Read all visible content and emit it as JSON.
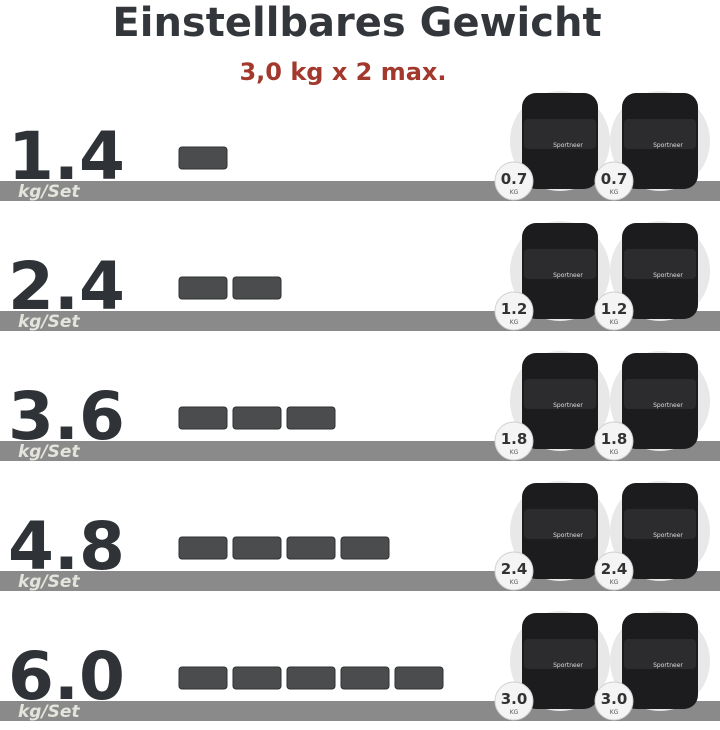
{
  "header": {
    "title": "Einstellbares Gewicht",
    "subtitle": "3,0 kg x 2 max."
  },
  "brand": "Sportneer",
  "rows": [
    {
      "weight": "1.4",
      "unit": "kg/Set",
      "badges": [
        {
          "value": "0.7",
          "unit": "KG"
        },
        {
          "value": "0.7",
          "unit": "KG"
        }
      ]
    },
    {
      "weight": "2.4",
      "unit": "kg/Set",
      "badges": [
        {
          "value": "1.2",
          "unit": "KG"
        },
        {
          "value": "1.2",
          "unit": "KG"
        }
      ]
    },
    {
      "weight": "3.6",
      "unit": "kg/Set",
      "badges": [
        {
          "value": "1.8",
          "unit": "KG"
        },
        {
          "value": "1.8",
          "unit": "KG"
        }
      ]
    },
    {
      "weight": "4.8",
      "unit": "kg/Set",
      "badges": [
        {
          "value": "2.4",
          "unit": "KG"
        },
        {
          "value": "2.4",
          "unit": "KG"
        }
      ]
    },
    {
      "weight": "6.0",
      "unit": "kg/Set",
      "badges": [
        {
          "value": "3.0",
          "unit": "KG"
        },
        {
          "value": "3.0",
          "unit": "KG"
        }
      ]
    }
  ]
}
